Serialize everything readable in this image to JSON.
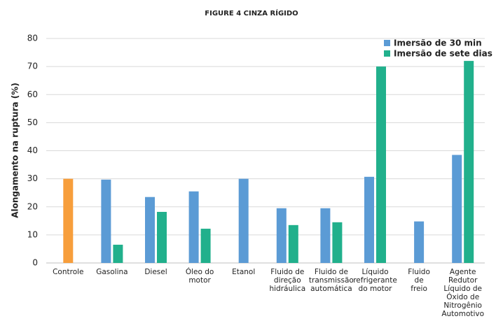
{
  "chart_data": {
    "type": "bar",
    "title": "FIGURE 4 CINZA RÍGIDO",
    "y_label": "Alongamento na ruptura (%)",
    "categories": [
      "Controle",
      "Gasolina",
      "Diesel",
      "Óleo do\nmotor",
      "Etanol",
      "Fluido de\ndireção\nhidráulica",
      "Fluido de\ntransmissão\nautomática",
      "Líquido\nrefrigerante\ndo motor",
      "Fluido\nde\nfreio",
      "Agente\nRedutor\nLíquido de\nÓxido de\nNitrogênio\nAutomotivo"
    ],
    "series": [
      {
        "name": "Imersão de 30 min",
        "color": "#5b9bd5",
        "colors": [
          "#f79e3c",
          null,
          null,
          null,
          null,
          null,
          null,
          null,
          null,
          null
        ],
        "values": [
          30,
          29.7,
          23.5,
          25.5,
          30,
          19.5,
          19.5,
          30.7,
          14.8,
          38.5
        ]
      },
      {
        "name": "Imersão de sete dias",
        "color": "#21b08c",
        "values": [
          null,
          6.5,
          18.2,
          12.2,
          null,
          13.5,
          14.5,
          70,
          null,
          72
        ]
      }
    ],
    "ylim": [
      0,
      80
    ],
    "yticks": [
      0,
      10,
      20,
      30,
      40,
      50,
      60,
      70,
      80
    ],
    "grid": true,
    "legend": "top-right"
  }
}
